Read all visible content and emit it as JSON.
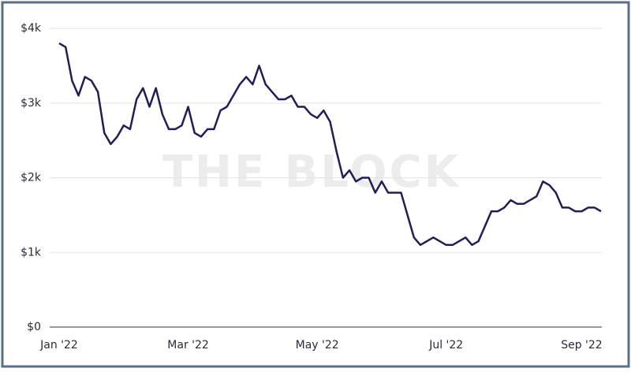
{
  "chart_data": {
    "type": "line",
    "watermark": "THE BLOCK",
    "categories": [
      "Jan '22",
      null,
      null,
      null,
      null,
      null,
      null,
      null,
      null,
      null,
      null,
      null,
      null,
      null,
      null,
      null,
      null,
      null,
      null,
      null,
      "Mar '22",
      null,
      null,
      null,
      null,
      null,
      null,
      null,
      null,
      null,
      null,
      null,
      null,
      null,
      null,
      null,
      null,
      null,
      null,
      null,
      "May '22",
      null,
      null,
      null,
      null,
      null,
      null,
      null,
      null,
      null,
      null,
      null,
      null,
      null,
      null,
      null,
      null,
      null,
      null,
      null,
      "Jul '22",
      null,
      null,
      null,
      null,
      null,
      null,
      null,
      null,
      null,
      null,
      null,
      null,
      null,
      null,
      null,
      null,
      null,
      null,
      null,
      null,
      "Sep '22",
      null,
      null,
      null
    ],
    "values": [
      3800,
      3750,
      3300,
      3100,
      3350,
      3300,
      3150,
      2600,
      2450,
      2550,
      2700,
      2650,
      3050,
      3200,
      2950,
      3200,
      2850,
      2650,
      2650,
      2700,
      2950,
      2600,
      2550,
      2650,
      2650,
      2900,
      2950,
      3100,
      3250,
      3350,
      3250,
      3500,
      3250,
      3150,
      3050,
      3050,
      3100,
      2950,
      2950,
      2850,
      2800,
      2900,
      2750,
      2350,
      2000,
      2100,
      1950,
      2000,
      2000,
      1800,
      1950,
      1800,
      1800,
      1800,
      1500,
      1200,
      1100,
      1150,
      1200,
      1150,
      1100,
      1100,
      1150,
      1200,
      1100,
      1150,
      1350,
      1550,
      1550,
      1600,
      1700,
      1650,
      1650,
      1700,
      1750,
      1950,
      1900,
      1800,
      1600,
      1600,
      1550,
      1550,
      1600,
      1600,
      1550
    ],
    "color": "#211d57",
    "ylim": [
      0,
      4000
    ],
    "yticks": [
      {
        "value": 0,
        "label": "$0"
      },
      {
        "value": 1000,
        "label": "$1k"
      },
      {
        "value": 2000,
        "label": "$2k"
      },
      {
        "value": 3000,
        "label": "$3k"
      },
      {
        "value": 4000,
        "label": "$4k"
      }
    ],
    "grid": true
  }
}
